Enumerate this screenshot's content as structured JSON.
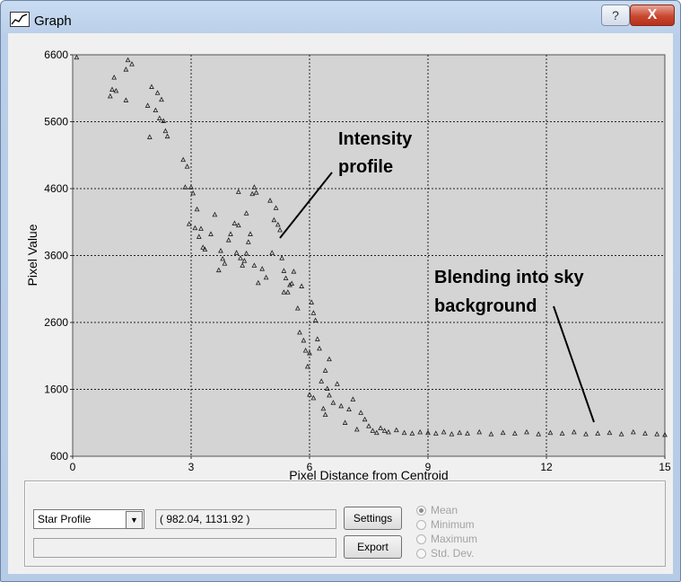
{
  "window": {
    "title": "Graph",
    "help_label": "?",
    "close_label": "X"
  },
  "chart_data": {
    "type": "scatter",
    "marker": "triangle",
    "xlabel": "Pixel Distance from Centroid",
    "ylabel": "Pixel Value",
    "xlim": [
      0,
      15
    ],
    "ylim": [
      600,
      6600
    ],
    "xticks": [
      "0",
      "3",
      "6",
      "9",
      "12",
      "15"
    ],
    "yticks": [
      "600",
      "1600",
      "2600",
      "3600",
      "4600",
      "5600",
      "6600"
    ],
    "grid": true,
    "background": "#d4d4d4",
    "annotations": [
      {
        "text_lines": [
          "Intensity",
          "profile"
        ],
        "arrow_to": [
          5.1,
          3800
        ]
      },
      {
        "text_lines": [
          "Blending into sky",
          "background"
        ],
        "arrow_to": [
          13.3,
          940
        ]
      }
    ],
    "points": [
      [
        0.1,
        6560
      ],
      [
        0.95,
        5980
      ],
      [
        1.0,
        6080
      ],
      [
        1.1,
        6060
      ],
      [
        1.05,
        6260
      ],
      [
        1.35,
        5920
      ],
      [
        1.35,
        6380
      ],
      [
        1.5,
        6460
      ],
      [
        1.4,
        6520
      ],
      [
        1.9,
        5840
      ],
      [
        2.0,
        6120
      ],
      [
        2.1,
        5770
      ],
      [
        2.15,
        6030
      ],
      [
        2.2,
        5650
      ],
      [
        2.3,
        5610
      ],
      [
        2.35,
        5460
      ],
      [
        2.4,
        5380
      ],
      [
        1.95,
        5370
      ],
      [
        2.25,
        5930
      ],
      [
        2.8,
        5030
      ],
      [
        2.9,
        4930
      ],
      [
        2.85,
        4620
      ],
      [
        3.0,
        4620
      ],
      [
        3.05,
        4530
      ],
      [
        3.15,
        4290
      ],
      [
        2.95,
        4070
      ],
      [
        3.1,
        4010
      ],
      [
        3.25,
        4000
      ],
      [
        3.2,
        3880
      ],
      [
        3.3,
        3720
      ],
      [
        3.35,
        3690
      ],
      [
        3.5,
        3920
      ],
      [
        3.6,
        4210
      ],
      [
        3.75,
        3670
      ],
      [
        3.8,
        3550
      ],
      [
        3.7,
        3380
      ],
      [
        3.85,
        3480
      ],
      [
        3.95,
        3830
      ],
      [
        4.0,
        3920
      ],
      [
        4.1,
        4080
      ],
      [
        4.2,
        4050
      ],
      [
        4.15,
        3640
      ],
      [
        4.25,
        3560
      ],
      [
        4.3,
        3450
      ],
      [
        4.35,
        3520
      ],
      [
        4.4,
        3630
      ],
      [
        4.45,
        3800
      ],
      [
        4.5,
        3920
      ],
      [
        4.55,
        4520
      ],
      [
        4.2,
        4550
      ],
      [
        4.4,
        4230
      ],
      [
        4.6,
        4620
      ],
      [
        4.65,
        4540
      ],
      [
        4.6,
        3450
      ],
      [
        4.7,
        3190
      ],
      [
        4.8,
        3400
      ],
      [
        4.9,
        3270
      ],
      [
        5.0,
        4420
      ],
      [
        5.1,
        4130
      ],
      [
        5.2,
        4060
      ],
      [
        5.15,
        4310
      ],
      [
        5.25,
        3980
      ],
      [
        5.05,
        3640
      ],
      [
        5.3,
        3560
      ],
      [
        5.35,
        3370
      ],
      [
        5.4,
        3260
      ],
      [
        5.5,
        3160
      ],
      [
        5.55,
        3180
      ],
      [
        5.6,
        3360
      ],
      [
        5.45,
        3050
      ],
      [
        5.35,
        3050
      ],
      [
        5.8,
        3140
      ],
      [
        5.7,
        2810
      ],
      [
        5.75,
        2450
      ],
      [
        5.85,
        2330
      ],
      [
        5.9,
        2180
      ],
      [
        6.0,
        2140
      ],
      [
        5.95,
        1940
      ],
      [
        6.05,
        2900
      ],
      [
        6.1,
        2740
      ],
      [
        6.15,
        2630
      ],
      [
        6.2,
        2350
      ],
      [
        6.25,
        2210
      ],
      [
        6.0,
        1520
      ],
      [
        6.1,
        1470
      ],
      [
        6.3,
        1720
      ],
      [
        6.4,
        1880
      ],
      [
        6.5,
        2050
      ],
      [
        6.45,
        1610
      ],
      [
        6.5,
        1510
      ],
      [
        6.35,
        1310
      ],
      [
        6.4,
        1220
      ],
      [
        6.6,
        1400
      ],
      [
        6.7,
        1680
      ],
      [
        6.8,
        1350
      ],
      [
        6.9,
        1100
      ],
      [
        7.0,
        1300
      ],
      [
        7.1,
        1450
      ],
      [
        7.2,
        1000
      ],
      [
        7.3,
        1250
      ],
      [
        7.4,
        1150
      ],
      [
        7.5,
        1050
      ],
      [
        7.6,
        980
      ],
      [
        7.7,
        950
      ],
      [
        7.8,
        1020
      ],
      [
        7.9,
        980
      ],
      [
        8.0,
        960
      ],
      [
        8.2,
        990
      ],
      [
        8.4,
        950
      ],
      [
        8.6,
        940
      ],
      [
        8.8,
        960
      ],
      [
        9.0,
        950
      ],
      [
        9.2,
        940
      ],
      [
        9.4,
        960
      ],
      [
        9.6,
        930
      ],
      [
        9.8,
        950
      ],
      [
        10.0,
        940
      ],
      [
        10.3,
        960
      ],
      [
        10.6,
        930
      ],
      [
        10.9,
        950
      ],
      [
        11.2,
        940
      ],
      [
        11.5,
        960
      ],
      [
        11.8,
        930
      ],
      [
        12.1,
        950
      ],
      [
        12.4,
        940
      ],
      [
        12.7,
        960
      ],
      [
        13.0,
        930
      ],
      [
        13.3,
        940
      ],
      [
        13.6,
        950
      ],
      [
        13.9,
        930
      ],
      [
        14.2,
        960
      ],
      [
        14.5,
        940
      ],
      [
        14.8,
        930
      ],
      [
        15.0,
        920
      ]
    ]
  },
  "controls": {
    "profile_select": {
      "value": "Star Profile"
    },
    "coordinates": "( 982.04, 1131.92 )",
    "status_text": "",
    "settings_label": "Settings",
    "export_label": "Export",
    "modes": [
      {
        "label": "Mean",
        "selected": true
      },
      {
        "label": "Minimum",
        "selected": false
      },
      {
        "label": "Maximum",
        "selected": false
      },
      {
        "label": "Std. Dev.",
        "selected": false
      }
    ]
  }
}
